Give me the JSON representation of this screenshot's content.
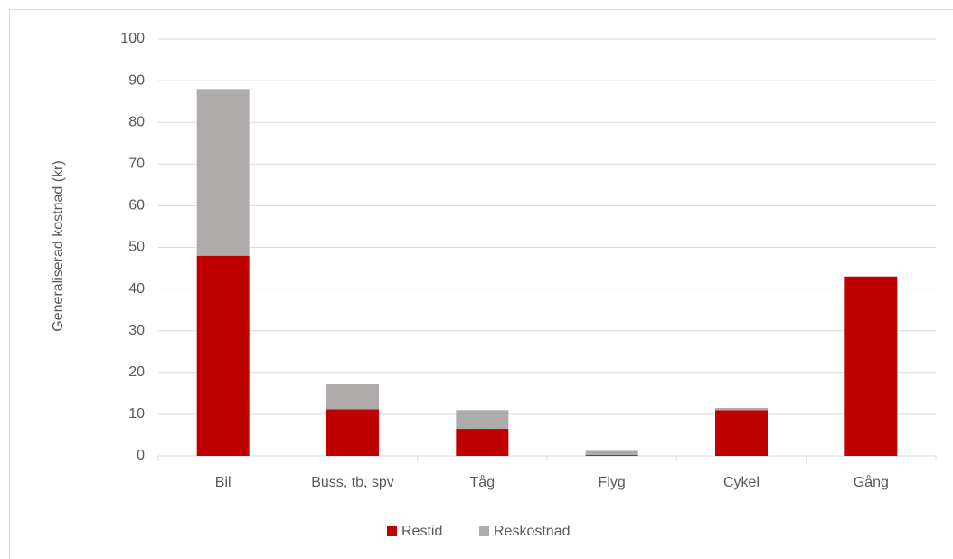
{
  "chart_data": {
    "type": "stacked_bar",
    "y_label": "Generaliserad  kostnad (kr)",
    "categories": [
      "Bil",
      "Buss, tb, spv",
      "Tåg",
      "Flyg",
      "Cykel",
      "Gång"
    ],
    "series": [
      {
        "name": "Restid",
        "color": "#c00000",
        "values": [
          48,
          11.2,
          6.5,
          0.2,
          11,
          43
        ]
      },
      {
        "name": "Reskostnad",
        "color": "#afabab",
        "values": [
          40,
          6.1,
          4.5,
          1.0,
          0.5,
          0
        ]
      }
    ],
    "ylim": [
      0,
      100
    ],
    "yticks": [
      0,
      10,
      20,
      30,
      40,
      50,
      60,
      70,
      80,
      90,
      100
    ],
    "grid": true,
    "legend": "bottom"
  }
}
